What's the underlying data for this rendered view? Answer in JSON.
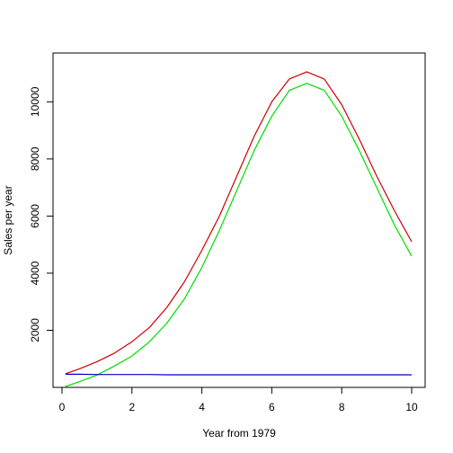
{
  "chart_data": {
    "type": "line",
    "title": "",
    "xlabel": "Year from 1979",
    "ylabel": "Sales per year",
    "xlim": [
      0,
      10
    ],
    "ylim": [
      0,
      11300
    ],
    "xticks": [
      0,
      2,
      4,
      6,
      8,
      10
    ],
    "yticks": [
      2000,
      4000,
      6000,
      8000,
      10000
    ],
    "xtick_labels": [
      "0",
      "2",
      "4",
      "6",
      "8",
      "10"
    ],
    "ytick_labels": [
      "2000",
      "4000",
      "6000",
      "8000",
      "10000"
    ],
    "grid": false,
    "x": [
      0.1,
      0.5,
      1,
      1.5,
      2,
      2.5,
      3,
      3.5,
      4,
      4.5,
      5,
      5.5,
      6,
      6.5,
      7,
      7.5,
      8,
      8.5,
      9,
      9.5,
      10
    ],
    "series": [
      {
        "color": "#cc0000",
        "values": [
          480,
          650,
          900,
          1200,
          1600,
          2100,
          2800,
          3700,
          4800,
          6000,
          7400,
          8800,
          10000,
          10800,
          11050,
          10800,
          9900,
          8700,
          7400,
          6200,
          5100
        ]
      },
      {
        "color": "#00dd00",
        "values": [
          30,
          200,
          430,
          750,
          1100,
          1600,
          2250,
          3100,
          4200,
          5500,
          6900,
          8300,
          9500,
          10400,
          10650,
          10400,
          9500,
          8300,
          7000,
          5700,
          4600
        ]
      },
      {
        "color": "#0000cc",
        "values": [
          460,
          460,
          450,
          450,
          450,
          450,
          440,
          440,
          440,
          440,
          440,
          440,
          440,
          440,
          440,
          440,
          440,
          440,
          440,
          440,
          440
        ]
      }
    ]
  }
}
